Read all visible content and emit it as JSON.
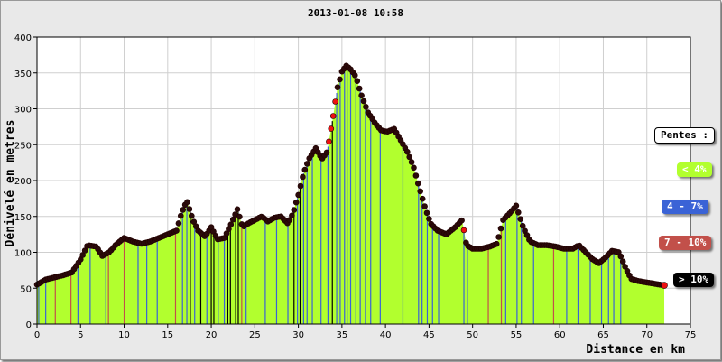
{
  "chart_data": {
    "type": "area",
    "title": "2013-01-08 10:58",
    "xlabel": "Distance en km",
    "ylabel": "Dénivelé en metres",
    "xlim": [
      0,
      75
    ],
    "ylim": [
      0,
      400
    ],
    "x_ticks": [
      "0",
      "5",
      "10",
      "15",
      "20",
      "25",
      "30",
      "35",
      "40",
      "45",
      "50",
      "55",
      "60",
      "65",
      "70",
      "75"
    ],
    "y_ticks": [
      "0",
      "50",
      "100",
      "150",
      "200",
      "250",
      "300",
      "350",
      "400"
    ],
    "grid": true,
    "legend_position": "right",
    "legend_title": "Pentes :",
    "series": [
      {
        "name": "< 4%",
        "color": "#b2ff2e"
      },
      {
        "name": "4 - 7%",
        "color": "#3a63d6"
      },
      {
        "name": "7 - 10%",
        "color": "#c2504a"
      },
      {
        "name": "> 10%",
        "color": "#000000"
      }
    ],
    "profile": {
      "x": [
        0,
        1,
        2,
        3,
        4,
        5,
        5.8,
        6.8,
        7.5,
        8.3,
        9,
        10,
        11,
        12,
        13,
        14,
        15,
        16,
        16.6,
        17.2,
        17.9,
        18.5,
        19.3,
        20,
        20.7,
        21.5,
        22.3,
        23,
        23.6,
        24.2,
        25,
        25.8,
        26.5,
        27.2,
        28,
        28.8,
        29.4,
        30,
        30.6,
        31.2,
        32,
        32.7,
        33.3,
        34,
        34.5,
        35,
        35.5,
        36,
        36.6,
        37.2,
        38,
        38.8,
        39.5,
        40.2,
        41,
        41.8,
        42.5,
        43.2,
        44,
        44.6,
        45.2,
        46,
        47,
        48,
        48.8,
        49.3,
        50,
        51,
        52,
        52.8,
        53.5,
        54.3,
        55,
        55.8,
        56.6,
        57.5,
        58.5,
        59.5,
        60.5,
        61.5,
        62.2,
        63,
        63.8,
        64.5,
        65.2,
        66,
        66.8,
        67.5,
        68.2,
        69,
        70,
        71,
        72
      ],
      "y": [
        55,
        62,
        65,
        68,
        72,
        90,
        110,
        108,
        95,
        100,
        110,
        120,
        115,
        112,
        115,
        120,
        125,
        130,
        155,
        172,
        145,
        130,
        122,
        135,
        118,
        120,
        140,
        160,
        135,
        140,
        145,
        150,
        143,
        148,
        150,
        140,
        155,
        180,
        210,
        230,
        245,
        230,
        240,
        290,
        330,
        352,
        360,
        355,
        345,
        320,
        295,
        280,
        270,
        268,
        272,
        255,
        240,
        220,
        185,
        160,
        140,
        130,
        125,
        135,
        145,
        110,
        105,
        105,
        108,
        112,
        145,
        155,
        165,
        135,
        115,
        110,
        110,
        108,
        105,
        105,
        110,
        100,
        90,
        85,
        92,
        102,
        100,
        80,
        63,
        60,
        58,
        56,
        54
      ]
    },
    "slope_bands": [
      {
        "x": 0.2,
        "cls": 1
      },
      {
        "x": 1.0,
        "cls": 1
      },
      {
        "x": 2.1,
        "cls": 2
      },
      {
        "x": 3.9,
        "cls": 2
      },
      {
        "x": 4.7,
        "cls": 1
      },
      {
        "x": 6.1,
        "cls": 1
      },
      {
        "x": 7.9,
        "cls": 1
      },
      {
        "x": 8.2,
        "cls": 2
      },
      {
        "x": 10.0,
        "cls": 2
      },
      {
        "x": 11.6,
        "cls": 1
      },
      {
        "x": 12.6,
        "cls": 1
      },
      {
        "x": 13.8,
        "cls": 1
      },
      {
        "x": 15.9,
        "cls": 2
      },
      {
        "x": 16.7,
        "cls": 1
      },
      {
        "x": 17.2,
        "cls": 1
      },
      {
        "x": 17.6,
        "cls": 3
      },
      {
        "x": 18.1,
        "cls": 1
      },
      {
        "x": 18.8,
        "cls": 3
      },
      {
        "x": 19.5,
        "cls": 1
      },
      {
        "x": 20.0,
        "cls": 3
      },
      {
        "x": 20.3,
        "cls": 3
      },
      {
        "x": 20.8,
        "cls": 1
      },
      {
        "x": 21.5,
        "cls": 1
      },
      {
        "x": 21.9,
        "cls": 3
      },
      {
        "x": 22.2,
        "cls": 3
      },
      {
        "x": 22.8,
        "cls": 3
      },
      {
        "x": 23.1,
        "cls": 3
      },
      {
        "x": 23.5,
        "cls": 2
      },
      {
        "x": 24.0,
        "cls": 1
      },
      {
        "x": 26.2,
        "cls": 1
      },
      {
        "x": 27.5,
        "cls": 1
      },
      {
        "x": 28.8,
        "cls": 1
      },
      {
        "x": 29.5,
        "cls": 3
      },
      {
        "x": 29.9,
        "cls": 1
      },
      {
        "x": 30.2,
        "cls": 3
      },
      {
        "x": 30.6,
        "cls": 1
      },
      {
        "x": 31.0,
        "cls": 1
      },
      {
        "x": 31.6,
        "cls": 1
      },
      {
        "x": 32.6,
        "cls": 1
      },
      {
        "x": 33.4,
        "cls": 1
      },
      {
        "x": 33.9,
        "cls": 3
      },
      {
        "x": 34.4,
        "cls": 1
      },
      {
        "x": 34.8,
        "cls": 1
      },
      {
        "x": 35.3,
        "cls": 1
      },
      {
        "x": 35.6,
        "cls": 1
      },
      {
        "x": 36.0,
        "cls": 1
      },
      {
        "x": 36.6,
        "cls": 1
      },
      {
        "x": 37.1,
        "cls": 1
      },
      {
        "x": 37.7,
        "cls": 1
      },
      {
        "x": 38.3,
        "cls": 1
      },
      {
        "x": 39.4,
        "cls": 1
      },
      {
        "x": 42.0,
        "cls": 1
      },
      {
        "x": 43.8,
        "cls": 1
      },
      {
        "x": 44.2,
        "cls": 1
      },
      {
        "x": 44.8,
        "cls": 1
      },
      {
        "x": 45.4,
        "cls": 1
      },
      {
        "x": 46.1,
        "cls": 1
      },
      {
        "x": 49.0,
        "cls": 1
      },
      {
        "x": 49.4,
        "cls": 1
      },
      {
        "x": 51.8,
        "cls": 2
      },
      {
        "x": 53.3,
        "cls": 2
      },
      {
        "x": 53.8,
        "cls": 1
      },
      {
        "x": 55.1,
        "cls": 1
      },
      {
        "x": 55.6,
        "cls": 1
      },
      {
        "x": 57.0,
        "cls": 1
      },
      {
        "x": 59.3,
        "cls": 2
      },
      {
        "x": 60.8,
        "cls": 1
      },
      {
        "x": 62.1,
        "cls": 1
      },
      {
        "x": 63.5,
        "cls": 1
      },
      {
        "x": 64.8,
        "cls": 1
      },
      {
        "x": 65.6,
        "cls": 1
      },
      {
        "x": 66.2,
        "cls": 1
      },
      {
        "x": 67.0,
        "cls": 1
      }
    ]
  }
}
